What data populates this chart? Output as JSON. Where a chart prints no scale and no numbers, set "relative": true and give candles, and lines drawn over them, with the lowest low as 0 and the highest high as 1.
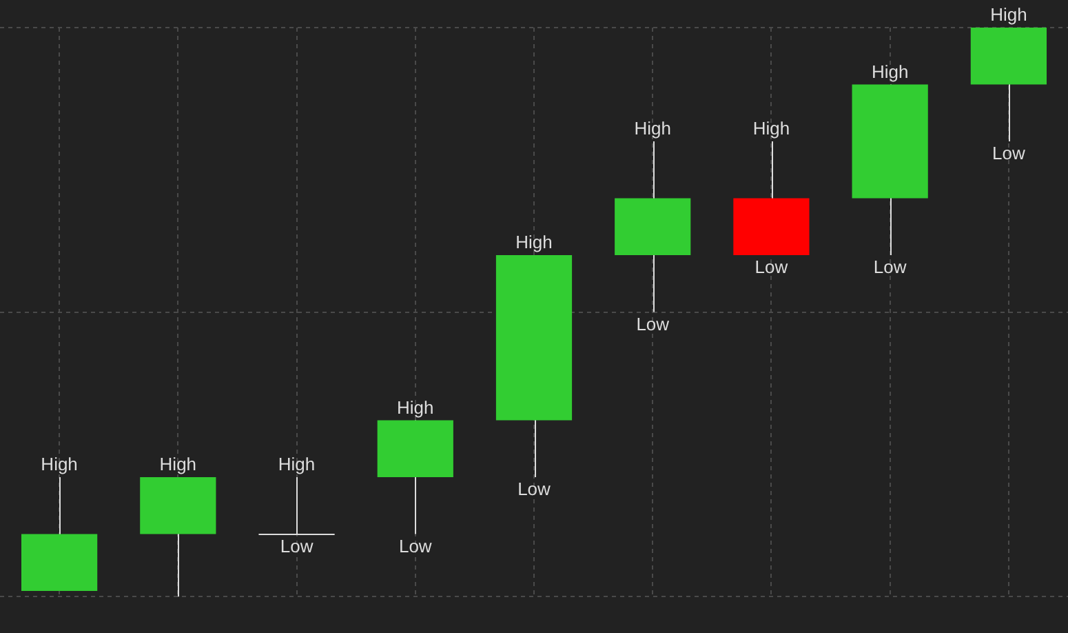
{
  "chart_data": {
    "type": "candlestick",
    "relative": true,
    "grid": true,
    "legend": false,
    "categories": [
      null,
      null,
      null,
      null,
      null,
      null,
      null,
      null,
      null
    ],
    "ohlc": [
      [
        0.01,
        0.21,
        0.01,
        0.11
      ],
      [
        0.11,
        0.21,
        0,
        0.21
      ],
      [
        0.11,
        0.21,
        0.11,
        0.11
      ],
      [
        0.21,
        0.31,
        0.11,
        0.31
      ],
      [
        0.31,
        0.6,
        0.21,
        0.6
      ],
      [
        0.6,
        0.8,
        0.5,
        0.7
      ],
      [
        0.7,
        0.8,
        0.6,
        0.6
      ],
      [
        0.7,
        0.9,
        0.6,
        0.9
      ],
      [
        0.9,
        1,
        0.8,
        1
      ]
    ],
    "colors": [
      "#32cd32",
      "#32cd32",
      "#dddddd",
      "#32cd32",
      "#32cd32",
      "#32cd32",
      "#ff0000",
      "#32cd32",
      "#32cd32"
    ],
    "annotations": [
      {
        "text": "High",
        "y": 0.21
      },
      {
        "text": "High",
        "y": 0.21
      },
      {
        "text": "High",
        "y": 0.21
      },
      {
        "text": "Low",
        "y": 0.11
      },
      {
        "text": "High",
        "y": 0.31
      },
      {
        "text": "Low",
        "y": 0.11
      },
      {
        "text": "High",
        "y": 0.6
      },
      {
        "text": "Low",
        "y": 0.21
      },
      {
        "text": "High",
        "y": 0.8
      },
      {
        "text": "Low",
        "y": 0.5
      },
      {
        "text": "High",
        "y": 0.8
      },
      {
        "text": "Low",
        "y": 0.6
      },
      {
        "text": "High",
        "y": 0.9
      },
      {
        "text": "Low",
        "y": 0.6
      },
      {
        "text": "High",
        "y": 1
      },
      {
        "text": "Low",
        "y": 0.8
      }
    ]
  }
}
